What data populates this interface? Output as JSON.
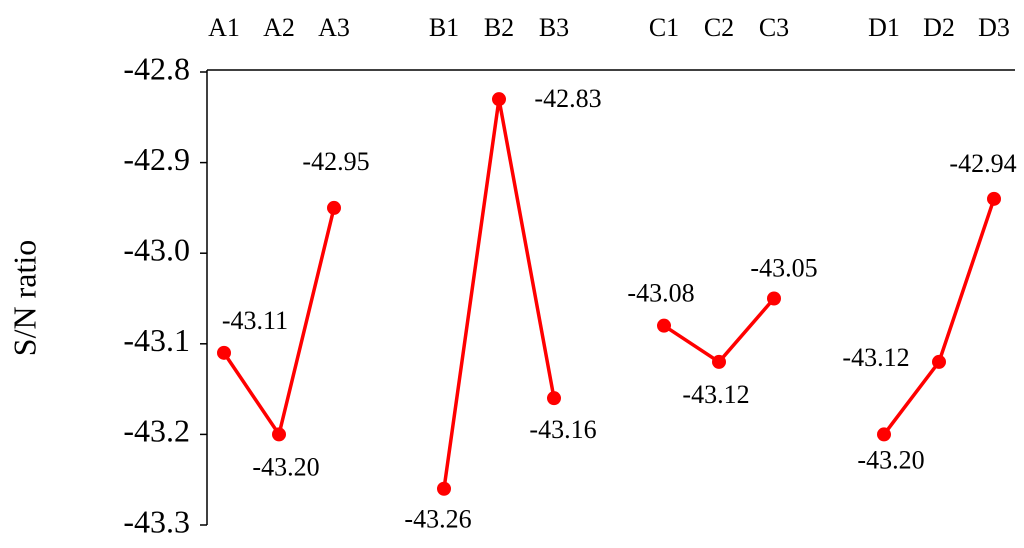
{
  "chart_data": {
    "type": "line",
    "y_label": "S/N ratio",
    "categories": [
      "A1",
      "A2",
      "A3",
      null,
      "B1",
      "B2",
      "B3",
      null,
      "C1",
      "C2",
      "C3",
      null,
      "D1",
      "D2",
      "D3"
    ],
    "values": [
      -43.11,
      -43.2,
      -42.95,
      null,
      -43.26,
      -42.83,
      -43.16,
      null,
      -43.08,
      -43.12,
      -43.05,
      null,
      -43.2,
      -43.12,
      -42.94
    ],
    "value_labels": [
      "-43.11",
      "-43.20",
      "-42.95",
      null,
      "-43.26",
      "-42.83",
      "-43.16",
      null,
      "-43.08",
      "-43.12",
      "-43.05",
      null,
      "-43.20",
      "-43.12",
      "-42.94"
    ],
    "color": "#ff0000",
    "ylim": [
      -43.3,
      -42.8
    ],
    "yticks": [
      -42.8,
      -42.9,
      {
        "value": -43,
        "label": "-43.0"
      },
      -43.1,
      -43.2,
      -43.3
    ]
  }
}
